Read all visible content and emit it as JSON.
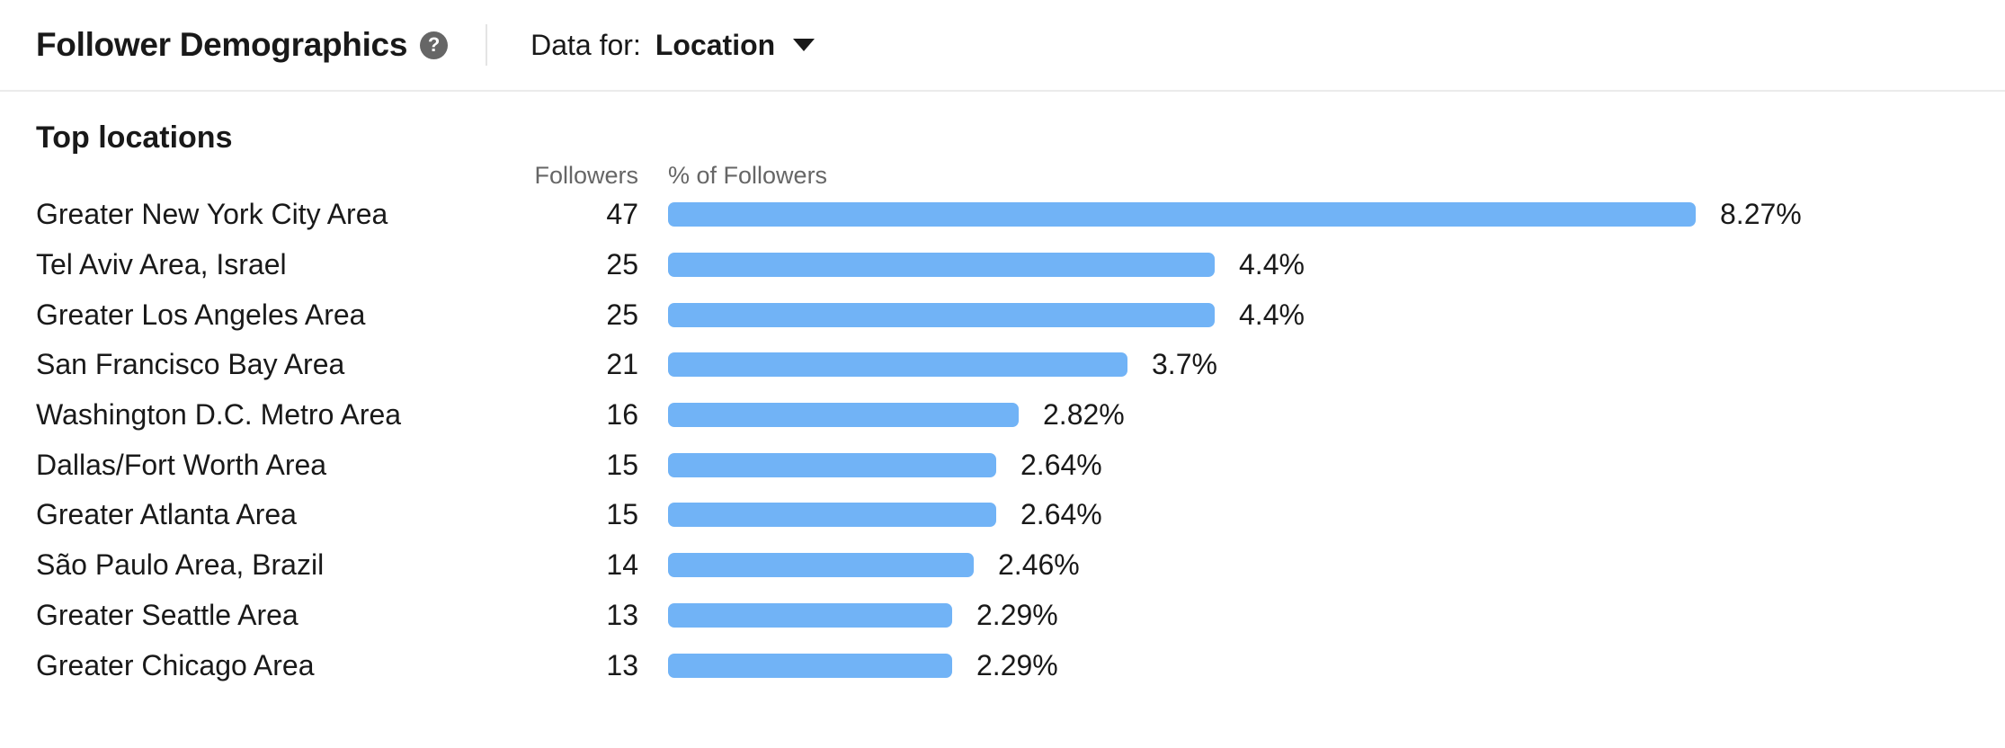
{
  "header": {
    "title": "Follower Demographics",
    "help_icon_glyph": "?",
    "data_for_label": "Data for:",
    "data_for_value": "Location"
  },
  "section": {
    "title": "Top locations",
    "columns": {
      "followers": "Followers",
      "pct": "% of Followers"
    }
  },
  "colors": {
    "bar": "#71B3F6",
    "text_primary": "#191919",
    "text_secondary": "#666666",
    "divider": "#ebebeb"
  },
  "chart_data": {
    "type": "bar",
    "orientation": "horizontal",
    "title": "Top locations",
    "categories": [
      "Greater New York City Area",
      "Tel Aviv Area, Israel",
      "Greater Los Angeles Area",
      "San Francisco Bay Area",
      "Washington D.C. Metro Area",
      "Dallas/Fort Worth Area",
      "Greater Atlanta Area",
      "São Paulo Area, Brazil",
      "Greater Seattle Area",
      "Greater Chicago Area"
    ],
    "series": [
      {
        "name": "Followers",
        "values": [
          47,
          25,
          25,
          21,
          16,
          15,
          15,
          14,
          13,
          13
        ]
      },
      {
        "name": "% of Followers",
        "values": [
          8.27,
          4.4,
          4.4,
          3.7,
          2.82,
          2.64,
          2.64,
          2.46,
          2.29,
          2.29
        ]
      }
    ],
    "data_labels": [
      "8.27%",
      "4.4%",
      "4.4%",
      "3.7%",
      "2.82%",
      "2.64%",
      "2.64%",
      "2.46%",
      "2.29%",
      "2.29%"
    ],
    "xlim": [
      0,
      8.27
    ],
    "grid": false,
    "legend": false,
    "bar_color": "#71B3F6"
  },
  "rows": [
    {
      "location": "Greater New York City Area",
      "followers": "47",
      "pct": "8.27%",
      "pct_value": 8.27
    },
    {
      "location": "Tel Aviv Area, Israel",
      "followers": "25",
      "pct": "4.4%",
      "pct_value": 4.4
    },
    {
      "location": "Greater Los Angeles Area",
      "followers": "25",
      "pct": "4.4%",
      "pct_value": 4.4
    },
    {
      "location": "San Francisco Bay Area",
      "followers": "21",
      "pct": "3.7%",
      "pct_value": 3.7
    },
    {
      "location": "Washington D.C. Metro Area",
      "followers": "16",
      "pct": "2.82%",
      "pct_value": 2.82
    },
    {
      "location": "Dallas/Fort Worth Area",
      "followers": "15",
      "pct": "2.64%",
      "pct_value": 2.64
    },
    {
      "location": "Greater Atlanta Area",
      "followers": "15",
      "pct": "2.64%",
      "pct_value": 2.64
    },
    {
      "location": "São Paulo Area, Brazil",
      "followers": "14",
      "pct": "2.46%",
      "pct_value": 2.46
    },
    {
      "location": "Greater Seattle Area",
      "followers": "13",
      "pct": "2.29%",
      "pct_value": 2.29
    },
    {
      "location": "Greater Chicago Area",
      "followers": "13",
      "pct": "2.29%",
      "pct_value": 2.29
    }
  ]
}
